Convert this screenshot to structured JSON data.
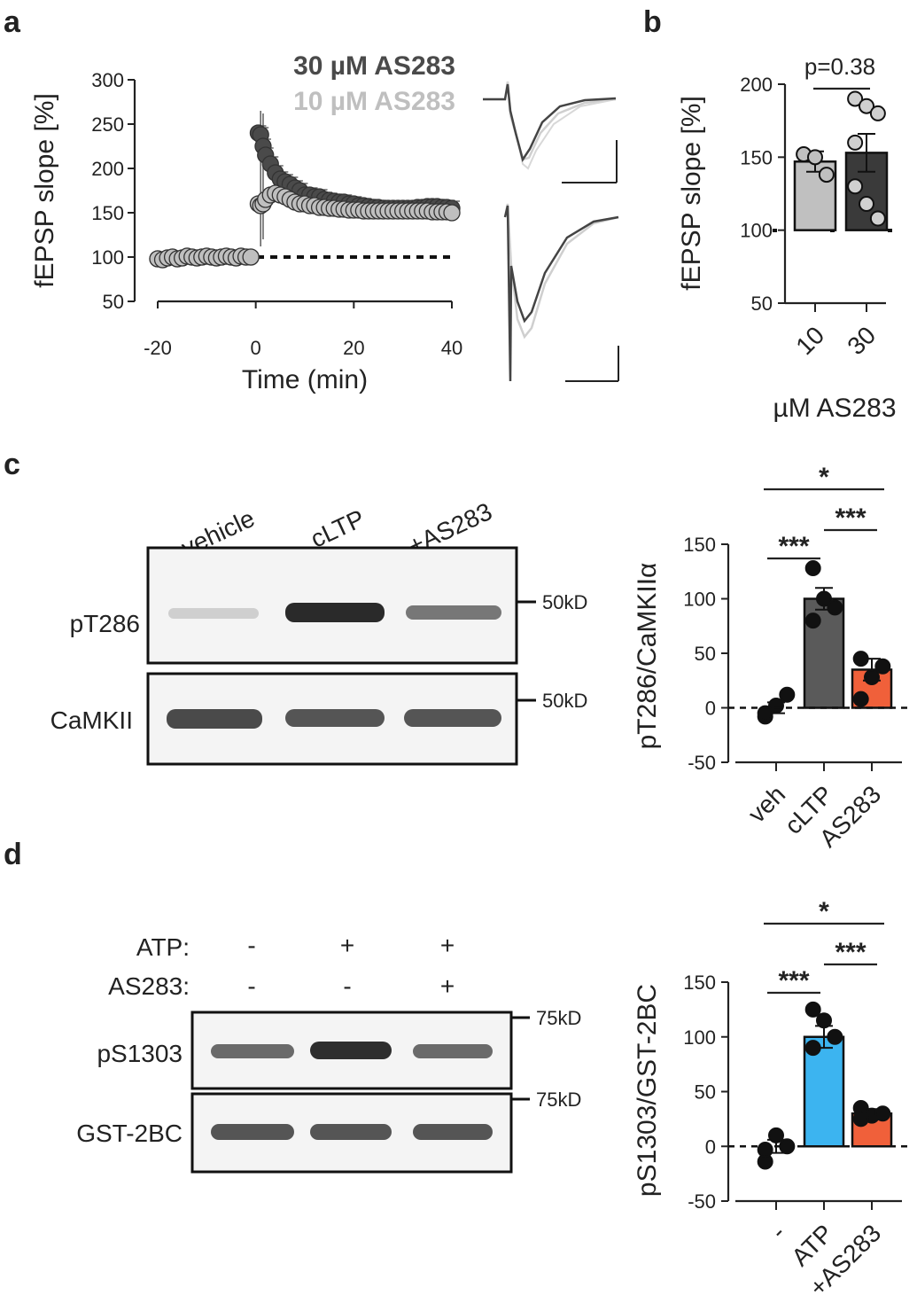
{
  "panels": {
    "a": {
      "label": "a",
      "legend": [
        {
          "name": "30 µM AS283",
          "color": "#4a4a4a"
        },
        {
          "name": "10 µM AS283",
          "color": "#bfbfbf"
        }
      ],
      "xlabel": "Time (min)",
      "ylabel": "fEPSP slope [%]",
      "xticks": [
        "-20",
        "0",
        "20",
        "40"
      ],
      "yticks": [
        "50",
        "100",
        "150",
        "200",
        "250",
        "300"
      ]
    },
    "b": {
      "label": "b",
      "ylabel": "fEPSP slope [%]",
      "xlabel": "µM AS283",
      "categories": [
        "10",
        "30"
      ],
      "yticks": [
        "50",
        "100",
        "150",
        "200"
      ],
      "pvalue": "p=0.38"
    },
    "c": {
      "label": "c",
      "lanes": [
        "vehicle",
        "cLTP",
        "+AS283"
      ],
      "bands": [
        "pT286",
        "CaMKII"
      ],
      "markers": [
        "50kD",
        "50kD"
      ],
      "ylabel": "pT286/CaMKIIα",
      "categories": [
        "veh",
        "cLTP",
        "AS283"
      ],
      "yticks": [
        "-50",
        "0",
        "50",
        "100",
        "150"
      ],
      "sig": [
        "*",
        "***",
        "***"
      ]
    },
    "d": {
      "label": "d",
      "row1_label": "ATP:",
      "row2_label": "AS283:",
      "row1": [
        "-",
        "+",
        "+"
      ],
      "row2": [
        "-",
        "-",
        "+"
      ],
      "bands": [
        "pS1303",
        "GST-2BC"
      ],
      "markers": [
        "75kD",
        "75kD"
      ],
      "ylabel": "pS1303/GST-2BC",
      "categories": [
        "-",
        "ATP",
        "+AS283"
      ],
      "yticks": [
        "-50",
        "0",
        "50",
        "100",
        "150"
      ],
      "sig": [
        "*",
        "***",
        "***"
      ]
    }
  },
  "chart_data": [
    {
      "type": "scatter",
      "panel": "a",
      "xlim": [
        -20,
        40
      ],
      "ylim": [
        50,
        300
      ],
      "series": [
        {
          "name": "30 µM AS283",
          "color": "#4a4a4a",
          "x": [
            -20,
            -19,
            -18,
            -17,
            -16,
            -15,
            -14,
            -13,
            -12,
            -11,
            -10,
            -9,
            -8,
            -7,
            -6,
            -5,
            -4,
            -3,
            -2,
            -1,
            0.5,
            1,
            1.5,
            2,
            3,
            4,
            5,
            6,
            7,
            8,
            9,
            10,
            11,
            12,
            13,
            14,
            15,
            16,
            17,
            18,
            19,
            20,
            21,
            22,
            23,
            24,
            25,
            26,
            27,
            28,
            29,
            30,
            31,
            32,
            33,
            34,
            35,
            36,
            37,
            38,
            39,
            40
          ],
          "y": [
            98,
            97,
            99,
            100,
            98,
            99,
            101,
            100,
            99,
            100,
            101,
            100,
            99,
            100,
            101,
            100,
            99,
            101,
            100,
            100,
            240,
            238,
            225,
            215,
            205,
            195,
            188,
            185,
            182,
            178,
            175,
            170,
            170,
            168,
            168,
            165,
            164,
            163,
            162,
            162,
            160,
            160,
            158,
            158,
            157,
            156,
            156,
            155,
            155,
            155,
            155,
            155,
            155,
            155,
            156,
            156,
            157,
            157,
            157,
            156,
            156,
            155
          ]
        },
        {
          "name": "10 µM AS283",
          "color": "#bfbfbf",
          "x": [
            -20,
            -19,
            -18,
            -17,
            -16,
            -15,
            -14,
            -13,
            -12,
            -11,
            -10,
            -9,
            -8,
            -7,
            -6,
            -5,
            -4,
            -3,
            -2,
            -1,
            0.5,
            1,
            1.5,
            2,
            3,
            4,
            5,
            6,
            7,
            8,
            9,
            10,
            11,
            12,
            13,
            14,
            15,
            16,
            17,
            18,
            19,
            20,
            21,
            22,
            23,
            24,
            25,
            26,
            27,
            28,
            29,
            30,
            31,
            32,
            33,
            34,
            35,
            36,
            37,
            38,
            39,
            40
          ],
          "y": [
            98,
            97,
            99,
            100,
            98,
            99,
            101,
            100,
            99,
            100,
            101,
            100,
            99,
            100,
            101,
            100,
            99,
            101,
            100,
            100,
            160,
            158,
            160,
            165,
            170,
            172,
            170,
            168,
            165,
            162,
            160,
            160,
            158,
            158,
            156,
            156,
            155,
            155,
            154,
            154,
            153,
            153,
            153,
            152,
            152,
            152,
            152,
            152,
            152,
            152,
            152,
            152,
            152,
            152,
            152,
            152,
            152,
            151,
            151,
            151,
            151,
            150
          ]
        }
      ],
      "baseline": 100
    },
    {
      "type": "bar",
      "panel": "b",
      "categories": [
        "10",
        "30"
      ],
      "values": [
        147,
        153
      ],
      "errors": [
        7,
        13
      ],
      "colors": [
        "#c0c0c0",
        "#3a3a3a"
      ],
      "points": [
        [
          152,
          150,
          138
        ],
        [
          190,
          185,
          180,
          160,
          118,
          108,
          130
        ]
      ],
      "ylim": [
        50,
        200
      ],
      "baseline": 100
    },
    {
      "type": "bar",
      "panel": "c",
      "categories": [
        "veh",
        "cLTP",
        "AS283"
      ],
      "values": [
        0,
        100,
        35
      ],
      "errors": [
        5,
        10,
        10
      ],
      "colors": [
        "#3a3a3a",
        "#5a5a5a",
        "#f0603a"
      ],
      "points": [
        [
          -8,
          2,
          12,
          -5
        ],
        [
          128,
          100,
          92,
          80
        ],
        [
          45,
          28,
          38,
          8
        ]
      ],
      "ylim": [
        -50,
        150
      ],
      "baseline": 0
    },
    {
      "type": "bar",
      "panel": "d",
      "categories": [
        "-",
        "ATP",
        "+AS283"
      ],
      "values": [
        0,
        100,
        30
      ],
      "errors": [
        6,
        10,
        4
      ],
      "colors": [
        "#3a3a3a",
        "#3cb4f0",
        "#f0603a"
      ],
      "points": [
        [
          -14,
          10,
          0,
          -3
        ],
        [
          125,
          115,
          100,
          90
        ],
        [
          35,
          28,
          30,
          25
        ]
      ],
      "ylim": [
        -50,
        150
      ],
      "baseline": 0
    }
  ]
}
